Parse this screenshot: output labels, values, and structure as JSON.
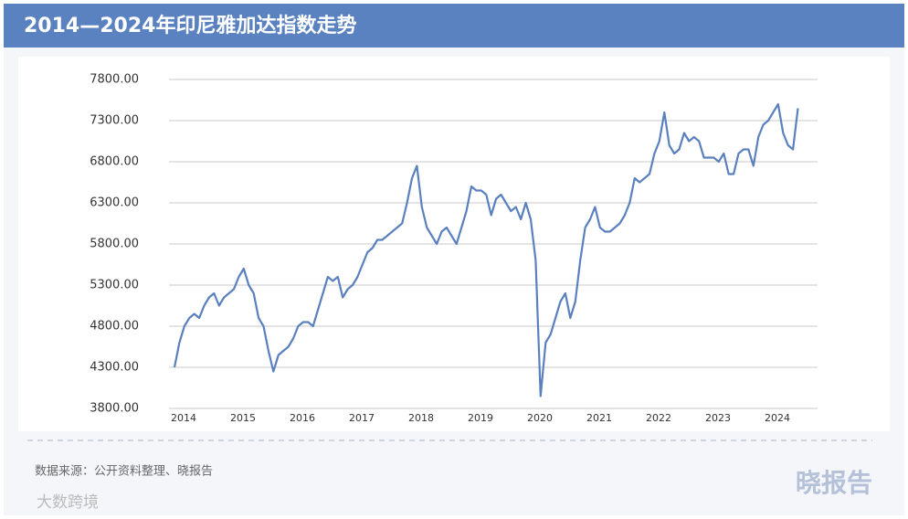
{
  "chart_data": {
    "type": "line",
    "title": "2014—2024年印尼雅加达指数走势",
    "source": "数据来源：公开资料整理、晓报告",
    "watermark": "晓报告",
    "corner_mark": "大数跨境",
    "categories": [
      "2014",
      null,
      null,
      null,
      null,
      null,
      null,
      null,
      null,
      null,
      null,
      null,
      "2015",
      null,
      null,
      null,
      null,
      null,
      null,
      null,
      null,
      null,
      null,
      null,
      "2016",
      null,
      null,
      null,
      null,
      null,
      null,
      null,
      null,
      null,
      null,
      null,
      "2017",
      null,
      null,
      null,
      null,
      null,
      null,
      null,
      null,
      null,
      null,
      null,
      "2018",
      null,
      null,
      null,
      null,
      null,
      null,
      null,
      null,
      null,
      null,
      null,
      "2019",
      null,
      null,
      null,
      null,
      null,
      null,
      null,
      null,
      null,
      null,
      null,
      "2020",
      null,
      null,
      null,
      null,
      null,
      null,
      null,
      null,
      null,
      null,
      null,
      "2021",
      null,
      null,
      null,
      null,
      null,
      null,
      null,
      null,
      null,
      null,
      null,
      "2022",
      null,
      null,
      null,
      null,
      null,
      null,
      null,
      null,
      null,
      null,
      null,
      "2023",
      null,
      null,
      null,
      null,
      null,
      null,
      null,
      null,
      null,
      null,
      null,
      "2024",
      null,
      null,
      null,
      null,
      null,
      null
    ],
    "series": [
      {
        "color": "#5a80be",
        "values": [
          4300,
          4600,
          4800,
          4900,
          4950,
          4900,
          5050,
          5150,
          5200,
          5050,
          5150,
          5200,
          5250,
          5400,
          5500,
          5300,
          5200,
          4900,
          4800,
          4500,
          4250,
          4450,
          4500,
          4550,
          4650,
          4800,
          4850,
          4850,
          4800,
          5000,
          5200,
          5400,
          5350,
          5400,
          5150,
          5250,
          5300,
          5400,
          5550,
          5700,
          5750,
          5850,
          5850,
          5900,
          5950,
          6000,
          6050,
          6300,
          6600,
          6750,
          6250,
          6000,
          5900,
          5800,
          5950,
          6000,
          5900,
          5800,
          6000,
          6200,
          6500,
          6450,
          6450,
          6400,
          6150,
          6350,
          6400,
          6300,
          6200,
          6250,
          6100,
          6300,
          6100,
          5600,
          3950,
          4600,
          4700,
          4900,
          5100,
          5200,
          4900,
          5100,
          5600,
          6000,
          6100,
          6250,
          6000,
          5950,
          5950,
          6000,
          6050,
          6150,
          6300,
          6600,
          6550,
          6600,
          6650,
          6900,
          7050,
          7400,
          7000,
          6900,
          6950,
          7150,
          7050,
          7100,
          7050,
          6850,
          6850,
          6850,
          6800,
          6900,
          6650,
          6650,
          6900,
          6950,
          6950,
          6750,
          7100,
          7250,
          7300,
          7400,
          7500,
          7150,
          7000,
          6950,
          7450
        ]
      }
    ],
    "ylim": [
      3800,
      7800
    ],
    "yticks": [
      {
        "value": 3800,
        "label": "3800.00"
      },
      {
        "value": 4300,
        "label": "4300.00"
      },
      {
        "value": 4800,
        "label": "4800.00"
      },
      {
        "value": 5300,
        "label": "5300.00"
      },
      {
        "value": 5800,
        "label": "5800.00"
      },
      {
        "value": 6300,
        "label": "6300.00"
      },
      {
        "value": 6800,
        "label": "6800.00"
      },
      {
        "value": 7300,
        "label": "7300.00"
      },
      {
        "value": 7800,
        "label": "7800.00"
      }
    ],
    "grid": true
  }
}
